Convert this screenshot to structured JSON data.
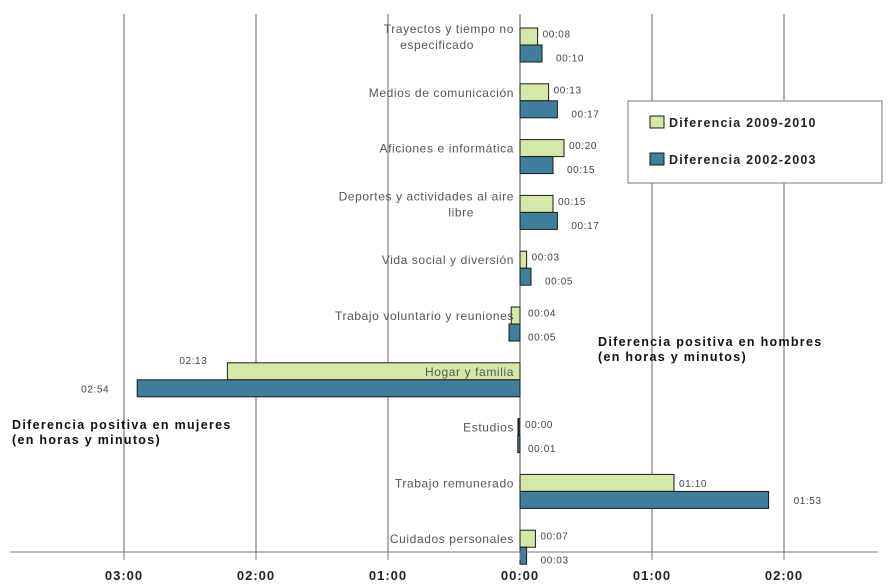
{
  "chart_data": {
    "type": "bar",
    "orientation": "horizontal",
    "categories": [
      "Trayectos y tiempo no especificado",
      "Medios de comunicación",
      "Aficiones e informática",
      "Deportes y actividades al aire libre",
      "Vida social y diversión",
      "Trabajo voluntario y reuniones",
      "Hogar y familia",
      "Estudios",
      "Trabajo remunerado",
      "Cuidados personales"
    ],
    "category_lines": [
      [
        "Trayectos y tiempo no",
        "especificado"
      ],
      [
        "Medios de comunicación"
      ],
      [
        "Aficiones e informática"
      ],
      [
        "Deportes y actividades al aire",
        "libre"
      ],
      [
        "Vida social y diversión"
      ],
      [
        "Trabajo voluntario y reuniones"
      ],
      [
        "Hogar y familia"
      ],
      [
        "Estudios"
      ],
      [
        "Trabajo remunerado"
      ],
      [
        "Cuidados personales"
      ]
    ],
    "series": [
      {
        "name": "Diferencia 2009-2010",
        "color": "#d4e8a8",
        "values_minutes": [
          8,
          13,
          20,
          15,
          3,
          -4,
          -133,
          0,
          70,
          7
        ],
        "labels": [
          "00:08",
          "00:13",
          "00:20",
          "00:15",
          "00:03",
          "00:04",
          "02:13",
          "00:00",
          "01:10",
          "00:07"
        ]
      },
      {
        "name": "Diferencia 2002-2003",
        "color": "#3f7f9c",
        "values_minutes": [
          10,
          17,
          15,
          17,
          5,
          -5,
          -174,
          -1,
          113,
          3
        ],
        "labels": [
          "00:10",
          "00:17",
          "00:15",
          "00:17",
          "00:05",
          "00:05",
          "02:54",
          "00:01",
          "01:53",
          "00:03"
        ]
      }
    ],
    "x_ticks_minutes": [
      -180,
      -120,
      -60,
      0,
      60,
      120
    ],
    "x_tick_labels": [
      "03:00",
      "02:00",
      "01:00",
      "00:00",
      "01:00",
      "02:00"
    ],
    "xlim_minutes": [
      -230,
      157
    ],
    "grid": "vertical",
    "legend_position": "top-right",
    "annotations": {
      "positive_men": "Diferencia positiva en hombres\n(en horas y minutos)",
      "positive_women": "Diferencia positiva en mujeres\n(en horas y minutos)"
    }
  }
}
